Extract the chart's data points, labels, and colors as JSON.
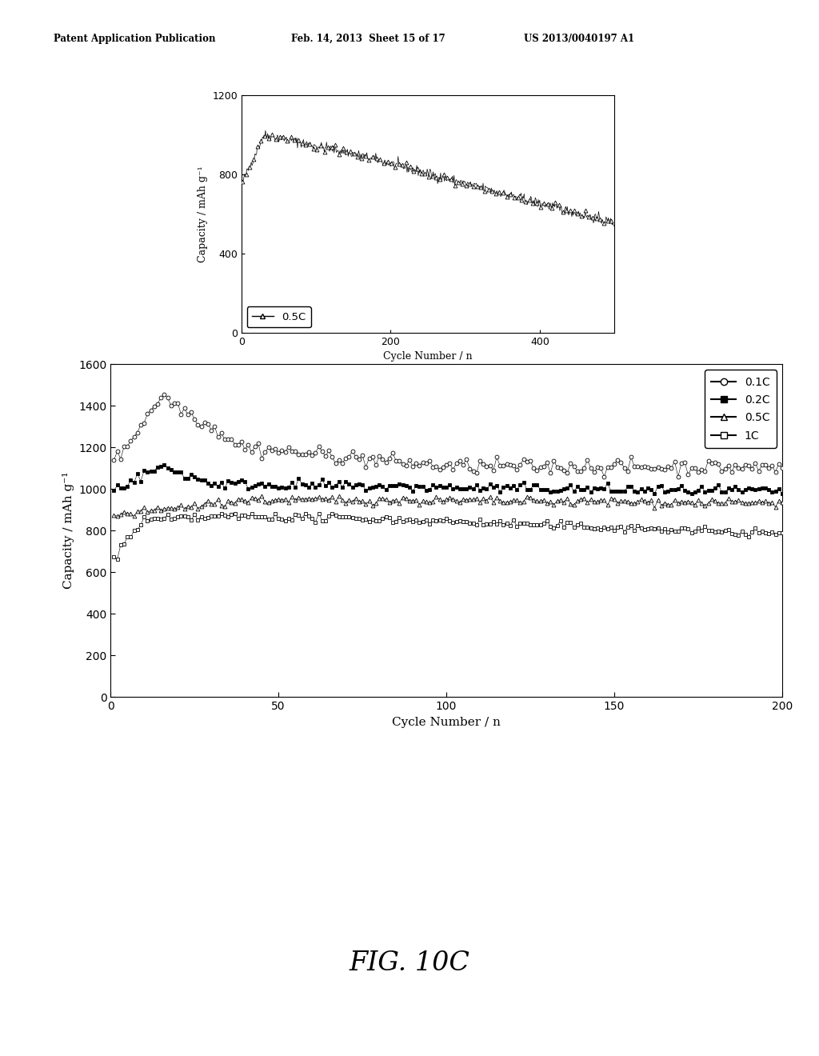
{
  "header_left": "Patent Application Publication",
  "header_mid": "Feb. 14, 2013  Sheet 15 of 17",
  "header_right": "US 2013/0040197 A1",
  "figure_label": "FIG. 10C",
  "inset": {
    "xlabel": "Cycle Number / n",
    "ylabel": "Capacity / mAh g⁻¹",
    "xlim": [
      0,
      500
    ],
    "ylim": [
      0,
      1200
    ],
    "xticks": [
      0,
      200,
      400
    ],
    "yticks": [
      0,
      400,
      800,
      1200
    ],
    "legend": "0.5C"
  },
  "main": {
    "xlabel": "Cycle Number / n",
    "ylabel": "Capacity / mAh g⁻¹",
    "xlim": [
      0,
      200
    ],
    "ylim": [
      0,
      1600
    ],
    "xticks": [
      0,
      50,
      100,
      150,
      200
    ],
    "yticks": [
      0,
      200,
      400,
      600,
      800,
      1000,
      1200,
      1400,
      1600
    ],
    "legend_labels": [
      "0.1C",
      "0.2C",
      "0.5C",
      "1C"
    ]
  },
  "background_color": "#ffffff",
  "line_color": "#000000"
}
